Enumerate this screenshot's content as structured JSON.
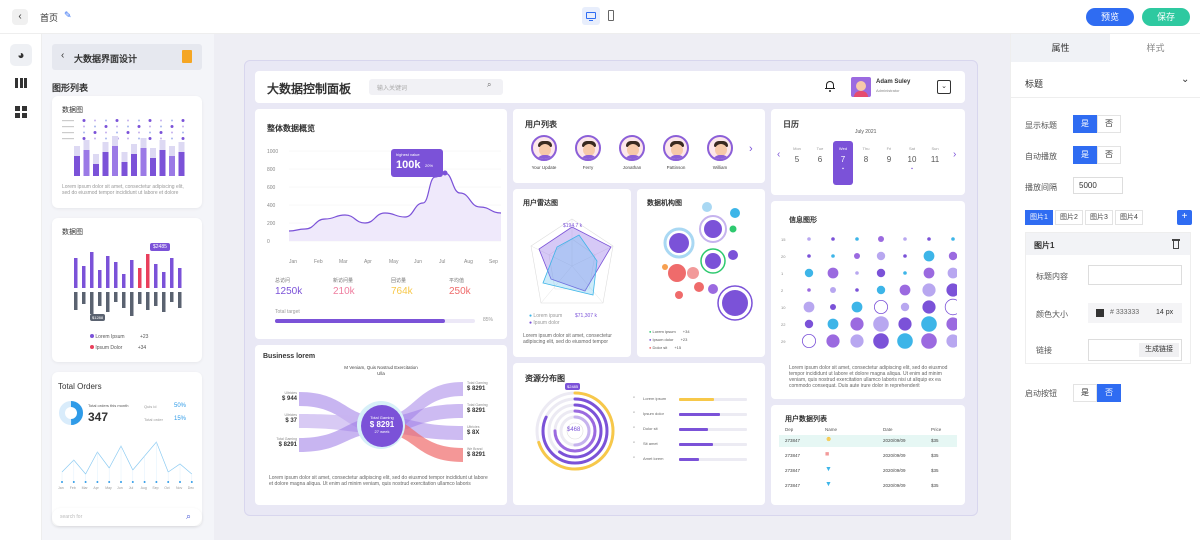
{
  "topbar": {
    "home_label": "首页",
    "preview_label": "预览",
    "save_label": "保存"
  },
  "left_panel": {
    "back_title": "大数据界面设计",
    "section_title": "图形列表",
    "thumb1_title": "数据图",
    "thumb1_text": "Lorem ipsum dolor sit amet, consectetur adipiscing elit, sed do eiusmod tempor incididunt ut labore et dolore",
    "thumb2_title": "数据图",
    "thumb2_badge": "$2485",
    "thumb2_low_badge": "$1288",
    "thumb2_legend": [
      {
        "name": "Lorem Ipsum",
        "value": "+23"
      },
      {
        "name": "Ipsum Dolor",
        "value": "+34"
      }
    ],
    "thumb3_title": "Total Orders",
    "thumb3_caption": "Total orders this month",
    "thumb3_value": "347",
    "thumb3_stats": [
      {
        "name": "Quis id",
        "value": "50%"
      },
      {
        "name": "Total order",
        "value": "15%"
      }
    ],
    "thumb3_months": [
      "Jan",
      "Feb",
      "Mar",
      "Apr",
      "May",
      "Jun",
      "Jul",
      "Aug",
      "Sep",
      "Oct",
      "Nov",
      "Dec"
    ],
    "search_placeholder": "search for"
  },
  "dashboard": {
    "title": "大数据控制面板",
    "search_placeholder": "输入关键词",
    "user_name": "Adam Suley",
    "user_role": "Administrator",
    "overview": {
      "title": "整体数据概览",
      "tooltip_label": "highest value",
      "tooltip_value": "100k",
      "tooltip_sub": "20%",
      "stats": [
        {
          "label": "总访问",
          "value": "1250k",
          "color": "#7b52d8"
        },
        {
          "label": "新访问量",
          "value": "210k",
          "color": "#ef7d9f"
        },
        {
          "label": "回访量",
          "value": "764k",
          "color": "#f7c84a"
        },
        {
          "label": "平均值",
          "value": "250k",
          "color": "#ef6b6b"
        }
      ],
      "progress_label": "Total target",
      "progress_value": "85%",
      "progress": 0.85
    },
    "users": {
      "title": "用户列表",
      "items": [
        {
          "name": "Your Update"
        },
        {
          "name": "Ferry"
        },
        {
          "name": "Jonathan"
        },
        {
          "name": "Pattinson"
        },
        {
          "name": "William"
        }
      ]
    },
    "calendar": {
      "title": "日历",
      "month": "July 2021",
      "days": [
        {
          "dow": "Mon",
          "date": "5"
        },
        {
          "dow": "Tue",
          "date": "6"
        },
        {
          "dow": "Wed",
          "date": "7"
        },
        {
          "dow": "Thu",
          "date": "8"
        },
        {
          "dow": "Fri",
          "date": "9"
        },
        {
          "dow": "Sat",
          "date": "10"
        },
        {
          "dow": "Sun",
          "date": "11"
        }
      ]
    },
    "radar": {
      "title": "用户雷达图",
      "labels": [
        "Lorem ipsum",
        "Ipsum dolor"
      ],
      "vals": [
        "$194.7 k",
        "$71,307 k"
      ],
      "desc": "Lorem ipsum dolor sit amet, consectetur adipiscing elit, sed do eiusmod tempor"
    },
    "org": {
      "title": "数据机构图",
      "legend": [
        "Lorem ipsum",
        "Ipsum dolor",
        "Dolor sit"
      ],
      "values": [
        "+34",
        "+23",
        "+15"
      ]
    },
    "bubble": {
      "title": "信息图形",
      "rows": [
        "15",
        "20",
        "1",
        "2",
        "10",
        "22",
        "29"
      ],
      "desc": "Lorem ipsum dolor sit amet, consectetur adipiscing elit, sed do eiusmod tempor incididunt ut labore et dolore magna aliqua. Ut enim ad minim veniam, quis nostrud exercitation ullamco laboris nisi ut aliquip ex ea commodo consequat. Duis aute irure dolor in reprehenderit"
    },
    "sankey": {
      "title": "Business lorem",
      "top_label": "M Veniam, Quis Nostrud Exercitation Ulla",
      "center_label": "Total Gaming",
      "center_value": "$ 8291",
      "center_sub": "27 week",
      "left": [
        {
          "label": "Ultricies",
          "value": "$ 944"
        },
        {
          "label": "Ultricies",
          "value": "$ 37"
        },
        {
          "label": "Total Gaming",
          "value": "$ 8291"
        }
      ],
      "right": [
        {
          "label": "Total Gaming",
          "value": "$ 8291"
        },
        {
          "label": "Total Gaming",
          "value": "$ 8291"
        },
        {
          "label": "Ultricies",
          "value": "$ 8X"
        },
        {
          "label": "We Brand",
          "value": "$ 8291"
        }
      ],
      "desc": "Lorem ipsum dolor sit amet, consectetur adipiscing elit, sed do eiusmod tempor incididunt ut labore et dolore magna aliqua. Ut enim ad minim veniam, quis nostrud exercitation ullamco laboris"
    },
    "resource": {
      "title": "资源分布图",
      "badge": "$2485",
      "center": "$468",
      "items": [
        {
          "label": "Lorem ipsum",
          "p": 0.52,
          "color": "#f7c84a"
        },
        {
          "label": "Ipsum dolor",
          "p": 0.6,
          "color": "#7b52d8"
        },
        {
          "label": "Dolor sit",
          "p": 0.42,
          "color": "#7b52d8"
        },
        {
          "label": "Sit amet",
          "p": 0.5,
          "color": "#7b52d8"
        },
        {
          "label": "Amet lorem",
          "p": 0.3,
          "color": "#7b52d8"
        }
      ]
    },
    "table": {
      "title": "用户数据列表",
      "headers": [
        "Dep",
        "Name",
        "Date",
        "Price"
      ],
      "rows": [
        {
          "dep": "273847",
          "date": "2020/09/09",
          "price": "$35"
        },
        {
          "dep": "273847",
          "date": "2020/09/09",
          "price": "$35"
        },
        {
          "dep": "273847",
          "date": "2020/09/09",
          "price": "$35"
        },
        {
          "dep": "273847",
          "date": "2020/09/09",
          "price": "$35"
        }
      ]
    }
  },
  "right_panel": {
    "tab_props": "属性",
    "tab_style": "样式",
    "section_title": "标题",
    "show_title_label": "显示标题",
    "autoplay_label": "自动播放",
    "interval_label": "播放间隔",
    "interval_value": "5000",
    "yes": "是",
    "no": "否",
    "image_tabs": [
      "图片1",
      "图片2",
      "图片3",
      "图片4"
    ],
    "add_label": "+",
    "image_title": "图片1",
    "content_label": "标题内容",
    "color_label": "颜色大小",
    "color_value": "# 333333",
    "size_value": "14 px",
    "link_label": "链接",
    "link_button": "生成链接",
    "enable_button_label": "启动按钮",
    "color_swatch": "#333333"
  }
}
